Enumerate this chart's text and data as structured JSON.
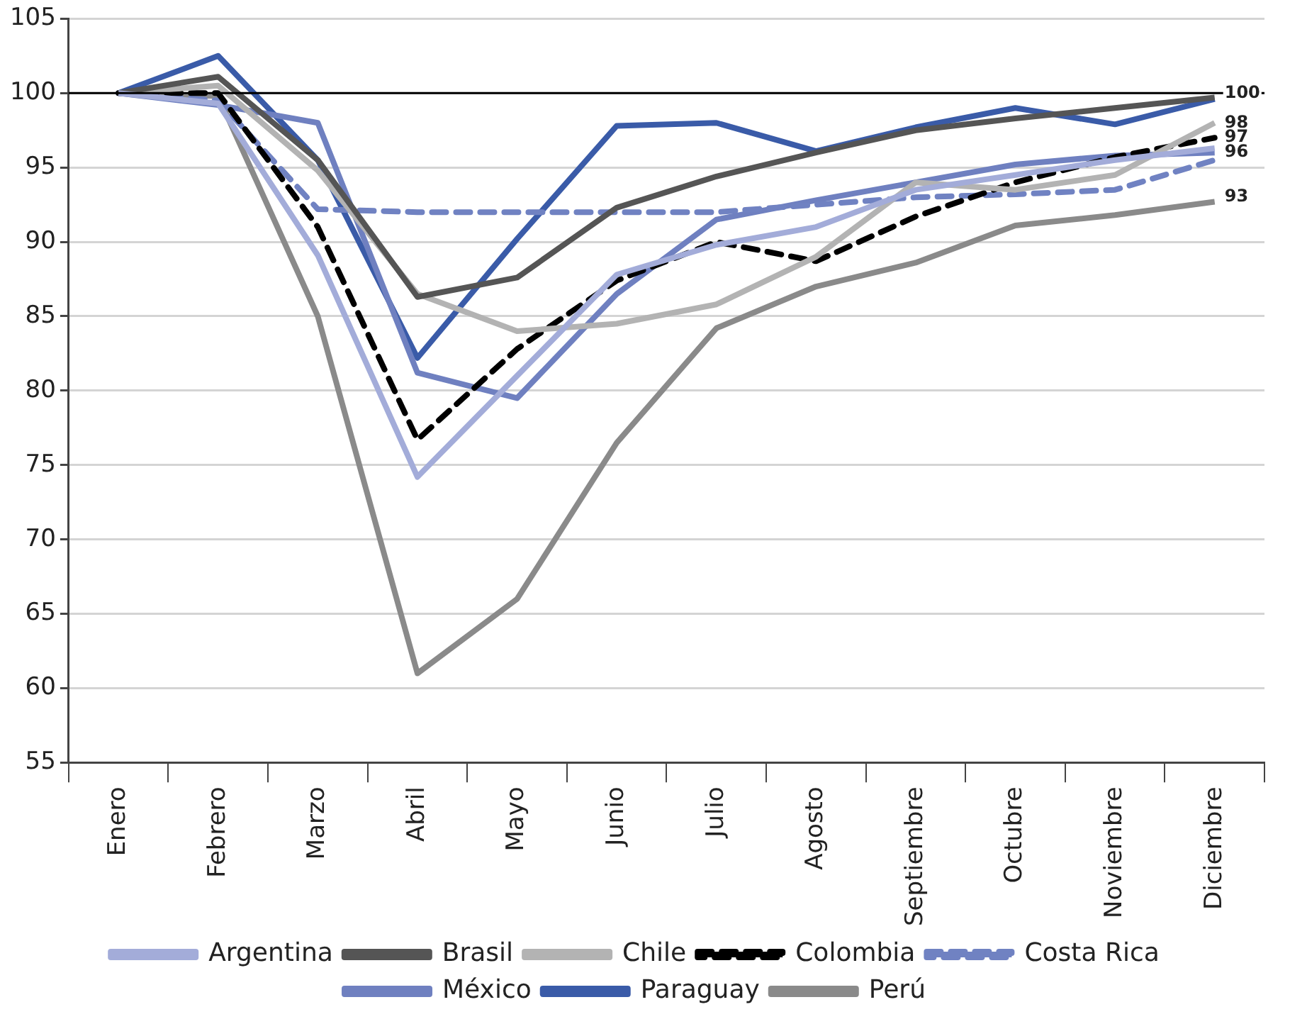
{
  "chart_data": {
    "type": "line",
    "categories": [
      "Enero",
      "Febrero",
      "Marzo",
      "Abril",
      "Mayo",
      "Junio",
      "Julio",
      "Agosto",
      "Septiembre",
      "Octubre",
      "Noviembre",
      "Diciembre"
    ],
    "series": [
      {
        "name": "Argentina",
        "color": "#a3acd9",
        "values": [
          100,
          99.3,
          89.1,
          74.2,
          81,
          87.8,
          89.8,
          91,
          93.5,
          94.5,
          95.5,
          96.3
        ]
      },
      {
        "name": "Brasil",
        "color": "#555555",
        "values": [
          100,
          101.1,
          95.5,
          86.3,
          87.6,
          92.3,
          94.4,
          96,
          97.5,
          98.3,
          99,
          99.7
        ]
      },
      {
        "name": "Chile",
        "color": "#b3b3b3",
        "values": [
          100,
          100.5,
          94.8,
          86.5,
          84,
          84.5,
          85.8,
          89,
          94,
          93.5,
          94.5,
          98
        ]
      },
      {
        "name": "Colombia",
        "color": "#000000",
        "line_style": "dashed",
        "values": [
          100,
          100,
          91,
          76.7,
          82.8,
          87.4,
          90,
          88.7,
          91.7,
          94,
          95.7,
          97
        ]
      },
      {
        "name": "Costa Rica",
        "color": "#7082c2",
        "line_style": "dashed",
        "values": [
          100,
          99.5,
          92.2,
          92,
          92,
          92,
          92,
          92.5,
          93,
          93.2,
          93.5,
          95.5
        ]
      },
      {
        "name": "México",
        "color": "#6f80c0",
        "values": [
          100,
          99.2,
          98,
          81.2,
          79.5,
          86.5,
          91.5,
          92.8,
          94,
          95.2,
          95.8,
          96
        ]
      },
      {
        "name": "Paraguay",
        "color": "#3a5ba8",
        "values": [
          100,
          102.5,
          95.5,
          82.2,
          90.2,
          97.8,
          98,
          96.1,
          97.7,
          99,
          97.9,
          99.6
        ]
      },
      {
        "name": "Perú",
        "color": "#8a8a8a",
        "values": [
          100,
          99.8,
          85,
          61,
          66,
          76.5,
          84.2,
          87,
          88.6,
          91.1,
          91.8,
          92.7
        ]
      }
    ],
    "ylim": [
      55,
      105
    ],
    "yticks": [
      55,
      60,
      65,
      70,
      75,
      80,
      85,
      90,
      95,
      100,
      105
    ],
    "ref_lines": [
      {
        "axis": "y",
        "value": 100,
        "color": "#000000"
      }
    ],
    "annotations": [
      {
        "text": "100",
        "x": "Diciembre",
        "y": 100
      },
      {
        "text": "98",
        "x": "Diciembre",
        "y": 98
      },
      {
        "text": "97",
        "x": "Diciembre",
        "y": 97
      },
      {
        "text": "96",
        "x": "Diciembre",
        "y": 96
      },
      {
        "text": "93",
        "x": "Diciembre",
        "y": 93
      }
    ],
    "grid": "y",
    "legend": "bottom",
    "marker": "none",
    "line_style": "solid"
  }
}
